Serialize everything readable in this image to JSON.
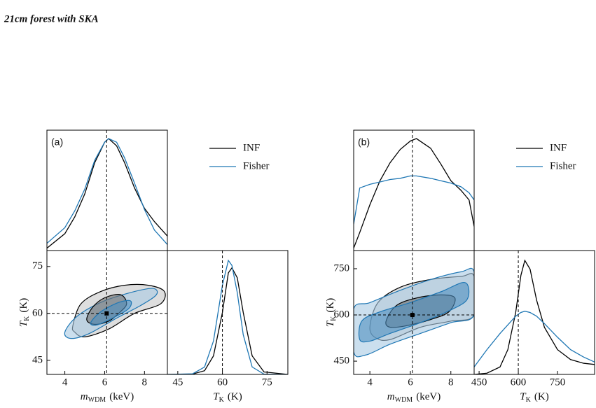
{
  "title": "21cm forest with SKA",
  "chart_data": [
    {
      "type": "corner",
      "label": "(a)",
      "xlabel": {
        "symbol": "m",
        "subscript": "WDM",
        "unit": "(keV)"
      },
      "ylabel": {
        "symbol": "T",
        "subscript": "K",
        "unit": "(K)"
      },
      "xlim": [
        3.1,
        9.15
      ],
      "xticks": [
        4,
        6,
        8
      ],
      "ylim": [
        40.5,
        80.1
      ],
      "yticks": [
        45,
        60,
        75
      ],
      "marginal_xlim": [
        41.5,
        82
      ],
      "marginal_xticks": [
        45,
        60,
        75
      ],
      "marginal_ylim": [
        0,
        1
      ],
      "truth": [
        6.1,
        60
      ],
      "series": [
        {
          "name": "INF",
          "color": "#000000",
          "fills": [
            "#c8c8c8",
            "#6e6e6e"
          ],
          "marginal_x": {
            "x": [
              3.1,
              4,
              4.5,
              5,
              5.5,
              6,
              6.2,
              6.6,
              7,
              7.5,
              8,
              8.5,
              9.15
            ],
            "values": [
              0.02,
              0.14,
              0.28,
              0.47,
              0.73,
              0.9,
              0.93,
              0.87,
              0.73,
              0.52,
              0.35,
              0.24,
              0.12
            ]
          },
          "marginal_y": {
            "x": [
              41.5,
              50,
              54,
              57,
              60,
              62,
              63.2,
              65,
              67,
              70,
              74,
              82
            ],
            "values": [
              0,
              0.003,
              0.03,
              0.15,
              0.5,
              0.82,
              0.86,
              0.78,
              0.5,
              0.15,
              0.02,
              0
            ]
          },
          "contours": [
            {
              "x": [
                4.4,
                4.8,
                5.8,
                7,
                8.2,
                9,
                8.8,
                7.5,
                6.2,
                5,
                4.5
              ],
              "y": [
                56,
                63,
                67,
                69,
                69,
                67,
                63,
                60,
                55,
                52.5,
                54
              ]
            },
            {
              "x": [
                5.1,
                5.4,
                6,
                6.8,
                7.1,
                6.7,
                6.2,
                5.5
              ],
              "y": [
                58,
                62,
                65,
                66,
                63,
                60,
                57.5,
                56.5
              ]
            }
          ]
        },
        {
          "name": "Fisher",
          "color": "#1f77b4",
          "fills": [
            "#a9c9e2",
            "#4f8fbf"
          ],
          "marginal_x": {
            "x": [
              3.1,
              4,
              4.5,
              5,
              5.5,
              6,
              6.2,
              6.6,
              7,
              7.5,
              8,
              8.5,
              9.15
            ],
            "values": [
              0.06,
              0.19,
              0.33,
              0.51,
              0.75,
              0.9,
              0.93,
              0.9,
              0.77,
              0.56,
              0.34,
              0.17,
              0.05
            ]
          },
          "marginal_y": {
            "x": [
              41.5,
              50,
              54,
              57,
              60,
              62,
              63.2,
              65,
              67,
              70,
              74,
              82
            ],
            "values": [
              0,
              0.005,
              0.06,
              0.27,
              0.72,
              0.92,
              0.88,
              0.66,
              0.32,
              0.06,
              0.002,
              0
            ]
          },
          "contours": [
            {
              "x": [
                4,
                4.6,
                5.8,
                7.2,
                8.4,
                8.6,
                7.8,
                6.6,
                5.2,
                4.3
              ],
              "y": [
                54,
                59,
                63.5,
                66.5,
                68,
                66,
                62.5,
                58.5,
                53.5,
                52
              ]
            },
            {
              "x": [
                5.3,
                5.8,
                6.7,
                7.3,
                7.2,
                6.4,
                5.6
              ],
              "y": [
                57,
                60.5,
                63.5,
                64,
                61.5,
                58.5,
                56.3
              ]
            }
          ]
        }
      ]
    },
    {
      "type": "corner",
      "label": "(b)",
      "xlabel": {
        "symbol": "m",
        "subscript": "WDM",
        "unit": "(keV)"
      },
      "ylabel": {
        "symbol": "T",
        "subscript": "K",
        "unit": "(K)"
      },
      "xlim": [
        3.2,
        9.15
      ],
      "xticks": [
        4,
        6,
        8
      ],
      "ylim": [
        407,
        809
      ],
      "yticks": [
        450,
        600,
        750
      ],
      "marginal_xlim": [
        431,
        892
      ],
      "marginal_xticks": [
        450,
        600,
        750
      ],
      "marginal_ylim": [
        0,
        1
      ],
      "truth": [
        6.1,
        600
      ],
      "series": [
        {
          "name": "INF",
          "color": "#000000",
          "fills": [
            "#c8c8c8",
            "#6e6e6e"
          ],
          "marginal_x": {
            "x": [
              3.2,
              3.5,
              4,
              4.5,
              5,
              5.5,
              6,
              6.3,
              7,
              7.5,
              8,
              8.5,
              8.9,
              9.15
            ],
            "values": [
              0.02,
              0.15,
              0.38,
              0.58,
              0.73,
              0.84,
              0.91,
              0.93,
              0.85,
              0.72,
              0.58,
              0.5,
              0.42,
              0.2
            ]
          },
          "marginal_y": {
            "x": [
              431,
              480,
              530,
              560,
              590,
              610,
              625,
              645,
              670,
              700,
              750,
              800,
              850,
              892
            ],
            "values": [
              0,
              0.01,
              0.06,
              0.2,
              0.5,
              0.8,
              0.92,
              0.85,
              0.6,
              0.38,
              0.2,
              0.12,
              0.09,
              0.08
            ]
          },
          "contours": [
            {
              "x": [
                4,
                4.4,
                5.5,
                7,
                8.5,
                9.15,
                9.15,
                8,
                6.5,
                5,
                4.3
              ],
              "y": [
                560,
                640,
                690,
                715,
                725,
                725,
                600,
                580,
                560,
                520,
                525
              ]
            },
            {
              "x": [
                4.8,
                5.3,
                6.3,
                7.5,
                8.2,
                7.9,
                7,
                5.8,
                5
              ],
              "y": [
                580,
                630,
                655,
                665,
                655,
                610,
                585,
                565,
                560
              ]
            }
          ]
        },
        {
          "name": "Fisher",
          "color": "#1f77b4",
          "fills": [
            "#a9c9e2",
            "#4f8fbf"
          ],
          "marginal_x": {
            "x": [
              3.2,
              3.5,
              4,
              4.5,
              5,
              5.5,
              6,
              6.3,
              7,
              7.5,
              8,
              8.5,
              8.9,
              9.15
            ],
            "values": [
              0.22,
              0.52,
              0.55,
              0.57,
              0.59,
              0.6,
              0.62,
              0.62,
              0.6,
              0.58,
              0.56,
              0.53,
              0.48,
              0.42
            ]
          },
          "marginal_y": {
            "x": [
              431,
              480,
              530,
              560,
              590,
              610,
              625,
              645,
              670,
              700,
              750,
              800,
              850,
              892
            ],
            "values": [
              0.06,
              0.2,
              0.33,
              0.4,
              0.47,
              0.5,
              0.51,
              0.5,
              0.47,
              0.41,
              0.3,
              0.2,
              0.14,
              0.1
            ]
          },
          "contours": [
            {
              "x": [
                3.2,
                3.2,
                4,
                5.5,
                7,
                8.5,
                9.15,
                9.15,
                8,
                6.5,
                5,
                3.8
              ],
              "y": [
                480,
                620,
                640,
                680,
                715,
                740,
                740,
                600,
                575,
                540,
                505,
                470
              ]
            },
            {
              "x": [
                3.5,
                3.6,
                4.5,
                6,
                7.5,
                8.7,
                8.8,
                7.8,
                6.5,
                5,
                4
              ],
              "y": [
                520,
                580,
                610,
                640,
                675,
                705,
                650,
                610,
                575,
                540,
                515
              ]
            }
          ]
        }
      ]
    }
  ]
}
